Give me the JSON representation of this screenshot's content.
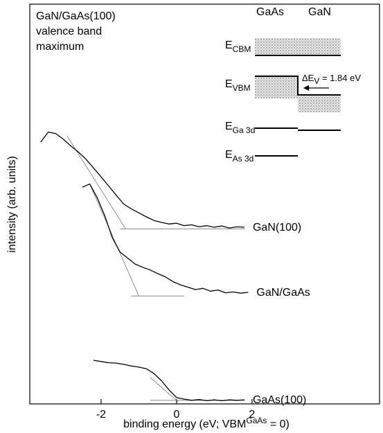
{
  "chart_data": {
    "type": "line",
    "title_lines": [
      "GaN/GaAs(100)",
      "valence band",
      "maximum"
    ],
    "xlabel": "binding energy (eV; VBM",
    "xlabel_sup": "GaAs",
    "xlabel_end": " = 0)",
    "ylabel": "intensity (arb. units)",
    "xlim": [
      -3.89,
      5.38
    ],
    "ylim": [
      0,
      100
    ],
    "xticks": [
      -2,
      0,
      2
    ],
    "series": [
      {
        "name": "GaN(100)",
        "color": "#000000",
        "x": [
          -3.6,
          -3.4,
          -3.2,
          -3.0,
          -2.8,
          -2.6,
          -2.4,
          -2.2,
          -2.0,
          -1.8,
          -1.6,
          -1.4,
          -1.2,
          -1.0,
          -0.8,
          -0.6,
          -0.4,
          -0.2,
          0,
          0.2,
          0.4,
          0.6,
          0.8,
          1.0,
          1.2,
          1.4,
          1.6,
          1.8
        ],
        "values": [
          65.5,
          68,
          67.6,
          66.2,
          64.5,
          63,
          61.2,
          59,
          56.8,
          54.5,
          52.2,
          50,
          48.8,
          47.8,
          46.8,
          45.9,
          45.4,
          45,
          45.2,
          44.6,
          44.8,
          44.3,
          44.6,
          44.2,
          44.5,
          44,
          44.3,
          44.2
        ]
      },
      {
        "name": "GaN/GaAs",
        "color": "#000000",
        "x": [
          -2.5,
          -2.3,
          -2.1,
          -1.9,
          -1.7,
          -1.5,
          -1.3,
          -1.1,
          -0.9,
          -0.7,
          -0.5,
          -0.3,
          -0.1,
          0.1,
          0.3,
          0.5,
          0.7,
          0.9,
          1.1,
          1.3,
          1.5,
          1.7,
          1.9
        ],
        "values": [
          54.2,
          55,
          51.5,
          47,
          41.5,
          38,
          36.5,
          35,
          34.2,
          33.5,
          32.6,
          31.8,
          30.6,
          29.8,
          29.2,
          28.6,
          28.9,
          28.2,
          28.5,
          27.8,
          28,
          27.7,
          27.9
        ]
      },
      {
        "name": "GaAs(100)",
        "color": "#000000",
        "x": [
          -2.2,
          -2.0,
          -1.8,
          -1.6,
          -1.4,
          -1.2,
          -1.0,
          -0.8,
          -0.6,
          -0.4,
          -0.2,
          0,
          0.2,
          0.4,
          0.6,
          0.8,
          1.0,
          1.2,
          1.4,
          1.6,
          1.8
        ],
        "values": [
          10.9,
          10.6,
          10.3,
          10.2,
          9.9,
          9.5,
          9.2,
          8.8,
          7.6,
          5.8,
          3.5,
          1.6,
          1.2,
          0.9,
          1.1,
          0.8,
          1.0,
          0.8,
          1.0,
          0.9,
          1.0
        ]
      }
    ],
    "fit_lines": [
      {
        "x": [
          -2.9,
          -1.35
        ],
        "values": [
          67,
          43.8
        ]
      },
      {
        "x": [
          -1.5,
          1.8
        ],
        "values": [
          43.8,
          43.8
        ]
      },
      {
        "x": [
          -2.3,
          -1.0
        ],
        "values": [
          55,
          27
        ]
      },
      {
        "x": [
          -1.2,
          0.2
        ],
        "values": [
          27,
          27
        ]
      },
      {
        "x": [
          -0.7,
          0.05
        ],
        "values": [
          6.6,
          0.5
        ]
      },
      {
        "x": [
          -0.7,
          1.8
        ],
        "values": [
          0.9,
          0.9
        ]
      }
    ],
    "inset": {
      "col_left": "GaAs",
      "col_right": "GaN",
      "levels": [
        {
          "main": "E",
          "sub": "CBM"
        },
        {
          "main": "E",
          "sub": "VBM"
        },
        {
          "main": "E",
          "sub": "Ga 3d"
        },
        {
          "main": "E",
          "sub": "As 3d"
        }
      ],
      "offset_main": "ΔE",
      "offset_sub": "V",
      "offset_text": " = 1.84 eV"
    }
  }
}
